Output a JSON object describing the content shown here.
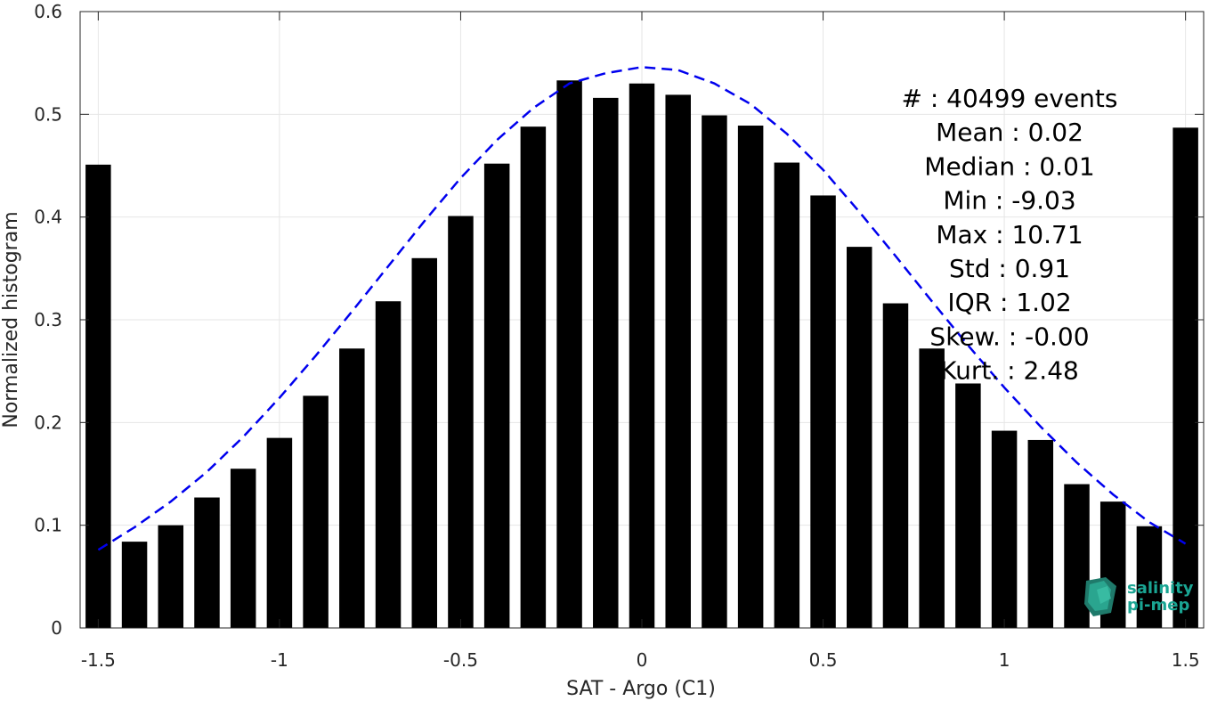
{
  "chart_data": {
    "type": "bar",
    "xlabel": "SAT - Argo (C1)",
    "ylabel": "Normalized histogram",
    "xlim": [
      -1.55,
      1.55
    ],
    "ylim": [
      0,
      0.6
    ],
    "grid": true,
    "xticks": [
      -1.5,
      -1,
      -0.5,
      0,
      0.5,
      1,
      1.5
    ],
    "xtick_labels": [
      "-1.5",
      "-1",
      "-0.5",
      "0",
      "0.5",
      "1",
      "1.5"
    ],
    "yticks": [
      0,
      0.1,
      0.2,
      0.3,
      0.4,
      0.5,
      0.6
    ],
    "ytick_labels": [
      "0",
      "0.1",
      "0.2",
      "0.3",
      "0.4",
      "0.5",
      "0.6"
    ],
    "bar_color": "#000000",
    "bar_width": 0.07,
    "bars": {
      "x": [
        -1.5,
        -1.4,
        -1.3,
        -1.2,
        -1.1,
        -1.0,
        -0.9,
        -0.8,
        -0.7,
        -0.6,
        -0.5,
        -0.4,
        -0.3,
        -0.2,
        -0.1,
        0.0,
        0.1,
        0.2,
        0.3,
        0.4,
        0.5,
        0.6,
        0.7,
        0.8,
        0.9,
        1.0,
        1.1,
        1.2,
        1.3,
        1.4,
        1.5
      ],
      "values": [
        0.451,
        0.084,
        0.1,
        0.127,
        0.155,
        0.185,
        0.226,
        0.272,
        0.318,
        0.36,
        0.401,
        0.452,
        0.488,
        0.533,
        0.516,
        0.53,
        0.519,
        0.499,
        0.489,
        0.453,
        0.421,
        0.371,
        0.316,
        0.272,
        0.238,
        0.192,
        0.183,
        0.14,
        0.123,
        0.099,
        0.487
      ]
    },
    "fit_curve": {
      "style": "dashed",
      "color": "#0000ee",
      "x": [
        -1.5,
        -1.4,
        -1.3,
        -1.2,
        -1.1,
        -1.0,
        -0.9,
        -0.8,
        -0.7,
        -0.6,
        -0.5,
        -0.4,
        -0.3,
        -0.2,
        -0.1,
        0.0,
        0.1,
        0.2,
        0.3,
        0.4,
        0.5,
        0.6,
        0.7,
        0.8,
        0.9,
        1.0,
        1.1,
        1.2,
        1.3,
        1.4,
        1.5
      ],
      "y": [
        0.076,
        0.098,
        0.123,
        0.152,
        0.186,
        0.224,
        0.265,
        0.308,
        0.352,
        0.396,
        0.438,
        0.475,
        0.506,
        0.53,
        0.54,
        0.546,
        0.543,
        0.53,
        0.51,
        0.481,
        0.446,
        0.405,
        0.362,
        0.318,
        0.275,
        0.234,
        0.196,
        0.161,
        0.13,
        0.103,
        0.082
      ]
    },
    "stats": [
      "#  : 40499 events",
      "Mean : 0.02",
      "Median : 0.01",
      "Min : -9.03",
      "Max : 10.71",
      "Std : 0.91",
      "IQR : 1.02",
      "Skew. : -0.00",
      "Kurt. : 2.48"
    ]
  },
  "logo": {
    "line1": "salinity",
    "line2": "pi-mep"
  }
}
